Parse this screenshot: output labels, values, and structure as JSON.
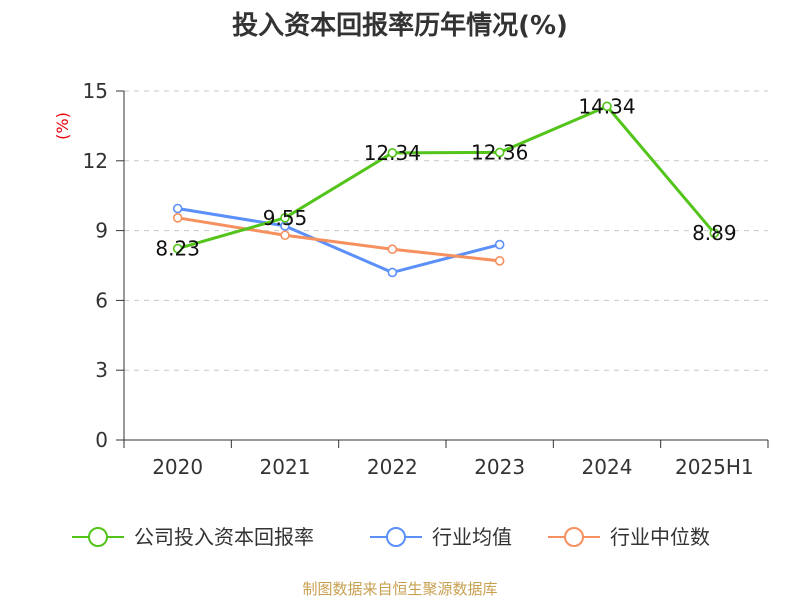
{
  "chart_data": {
    "type": "line",
    "title": "投入资本回报率历年情况(%)",
    "ylabel": "(%)",
    "categories": [
      "2020",
      "2021",
      "2022",
      "2023",
      "2024",
      "2025H1"
    ],
    "ylim": [
      0,
      15
    ],
    "yticks": [
      0,
      3,
      6,
      9,
      12,
      15
    ],
    "grid": true,
    "legend_position": "bottom",
    "series": [
      {
        "name": "公司投入资本回报率",
        "color": "#52c41a",
        "values": [
          8.23,
          9.55,
          12.34,
          12.36,
          14.34,
          8.89
        ],
        "labels": [
          "8.23",
          "9.55",
          "12.34",
          "12.36",
          "14.34",
          "8.89"
        ]
      },
      {
        "name": "行业均值",
        "color": "#5b8ff9",
        "values": [
          9.95,
          9.2,
          7.2,
          8.4,
          null,
          null
        ]
      },
      {
        "name": "行业中位数",
        "color": "#f6905e",
        "values": [
          9.55,
          8.8,
          8.2,
          7.7,
          null,
          null
        ]
      }
    ]
  },
  "source": "制图数据来自恒生聚源数据库"
}
